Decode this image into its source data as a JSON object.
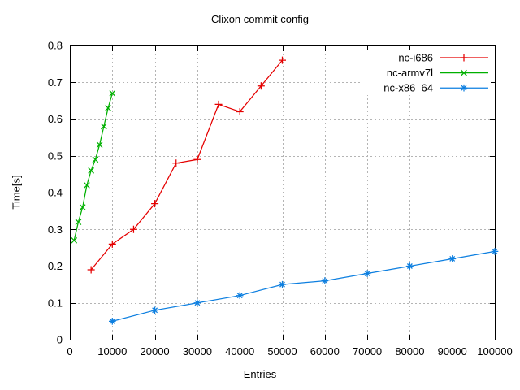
{
  "chart_data": {
    "type": "line",
    "title": "Clixon commit config",
    "xlabel": "Entries",
    "ylabel": "Time[s]",
    "xlim": [
      0,
      100000
    ],
    "ylim": [
      0,
      0.8
    ],
    "grid": true,
    "legend_position": "top-right-inside",
    "xticks": {
      "values": [
        0,
        10000,
        20000,
        30000,
        40000,
        50000,
        60000,
        70000,
        80000,
        90000,
        100000
      ],
      "labels": [
        "0",
        "10000",
        "20000",
        "30000",
        "40000",
        "50000",
        "60000",
        "70000",
        "80000",
        "90000",
        "100000"
      ]
    },
    "yticks": {
      "values": [
        0,
        0.1,
        0.2,
        0.3,
        0.4,
        0.5,
        0.6,
        0.7,
        0.8
      ],
      "labels": [
        "0",
        "0.1",
        "0.2",
        "0.3",
        "0.4",
        "0.5",
        "0.6",
        "0.7",
        "0.8"
      ]
    },
    "series": [
      {
        "name": "nc-i686",
        "color": "#e50000",
        "marker": "plus-marker-icon",
        "x": [
          5000,
          10000,
          15000,
          20000,
          25000,
          30000,
          35000,
          40000,
          45000,
          50000
        ],
        "y": [
          0.19,
          0.26,
          0.3,
          0.37,
          0.48,
          0.49,
          0.64,
          0.62,
          0.69,
          0.76
        ]
      },
      {
        "name": "nc-armv7l",
        "color": "#00b000",
        "marker": "cross-marker-icon",
        "x": [
          1000,
          2000,
          3000,
          4000,
          5000,
          6000,
          7000,
          8000,
          9000,
          10000
        ],
        "y": [
          0.27,
          0.32,
          0.36,
          0.42,
          0.46,
          0.49,
          0.53,
          0.58,
          0.63,
          0.67
        ]
      },
      {
        "name": "nc-x86_64",
        "color": "#0d7fe0",
        "marker": "asterisk-marker-icon",
        "x": [
          10000,
          20000,
          30000,
          40000,
          50000,
          60000,
          70000,
          80000,
          90000,
          100000
        ],
        "y": [
          0.05,
          0.08,
          0.1,
          0.12,
          0.15,
          0.16,
          0.18,
          0.2,
          0.22,
          0.24
        ]
      }
    ],
    "colors": {
      "grid": "#b4b4b4",
      "border": "#000000",
      "background": "#ffffff"
    }
  }
}
